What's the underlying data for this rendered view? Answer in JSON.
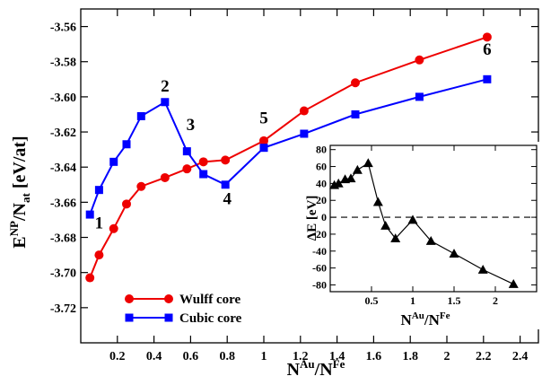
{
  "chart_data": [
    {
      "type": "line",
      "x_axis": {
        "label_main": "N",
        "label_sup1": "Au",
        "label_div": "/N",
        "label_sup2": "Fe",
        "range": [
          0,
          2.5
        ],
        "ticks": [
          0.2,
          0.4,
          0.6,
          0.8,
          1.0,
          1.2,
          1.4,
          1.6,
          1.8,
          2.0,
          2.2,
          2.4
        ],
        "tick_labels": [
          "0.2",
          "0.4",
          "0.6",
          "0.8",
          "1",
          "1.2",
          "1.4",
          "1.6",
          "1.8",
          "2",
          "2.2",
          "2.4"
        ]
      },
      "y_axis": {
        "label_main": "E",
        "label_sup": "NP",
        "label_div": "/N",
        "label_sub": "at",
        "label_unit": " [eV/at]",
        "range": [
          -3.74,
          -3.55
        ],
        "ticks": [
          -3.72,
          -3.7,
          -3.68,
          -3.66,
          -3.64,
          -3.62,
          -3.6,
          -3.58,
          -3.56
        ],
        "tick_labels": [
          "-3.72",
          "-3.70",
          "-3.68",
          "-3.66",
          "-3.64",
          "-3.62",
          "-3.60",
          "-3.58",
          "-3.56"
        ]
      },
      "series": [
        {
          "name": "Wulff core",
          "color": "#ee0000",
          "marker": "circle",
          "x": [
            0.05,
            0.1,
            0.18,
            0.25,
            0.33,
            0.46,
            0.58,
            0.67,
            0.79,
            1.0,
            1.22,
            1.5,
            1.85,
            2.22
          ],
          "y": [
            -3.703,
            -3.69,
            -3.675,
            -3.661,
            -3.651,
            -3.646,
            -3.641,
            -3.637,
            -3.636,
            -3.625,
            -3.608,
            -3.592,
            -3.579,
            -3.566
          ]
        },
        {
          "name": "Cubic core",
          "color": "#0000ff",
          "marker": "square",
          "x": [
            0.05,
            0.1,
            0.18,
            0.25,
            0.33,
            0.46,
            0.58,
            0.67,
            0.79,
            1.0,
            1.22,
            1.5,
            1.85,
            2.22
          ],
          "y": [
            -3.667,
            -3.653,
            -3.637,
            -3.627,
            -3.611,
            -3.603,
            -3.631,
            -3.644,
            -3.65,
            -3.629,
            -3.621,
            -3.61,
            -3.6,
            -3.59
          ]
        }
      ],
      "annotations": [
        {
          "text": "1",
          "x": 0.1,
          "y": -3.675
        },
        {
          "text": "2",
          "x": 0.46,
          "y": -3.597
        },
        {
          "text": "3",
          "x": 0.6,
          "y": -3.619
        },
        {
          "text": "4",
          "x": 0.8,
          "y": -3.661
        },
        {
          "text": "5",
          "x": 1.0,
          "y": -3.615
        },
        {
          "text": "6",
          "x": 2.22,
          "y": -3.576
        }
      ],
      "legend_position": "bottom-left",
      "grid": false
    },
    {
      "type": "line",
      "x_axis": {
        "label_main": "N",
        "label_sup1": "Au",
        "label_div": "/N",
        "label_sup2": "Fe",
        "range": [
          0,
          2.5
        ],
        "ticks": [
          0.5,
          1.0,
          1.5,
          2.0
        ],
        "tick_labels": [
          "0.5",
          "1",
          "1.5",
          "2"
        ]
      },
      "y_axis": {
        "label": "ΔE [eV]",
        "range": [
          -88,
          85
        ],
        "ticks": [
          80,
          60,
          40,
          20,
          0,
          -20,
          -40,
          -60,
          -80
        ],
        "tick_labels": [
          "80",
          "60",
          "40",
          "20",
          "0",
          "-20",
          "-40",
          "-60",
          "-80"
        ]
      },
      "series": [
        {
          "color": "#000000",
          "marker": "triangle",
          "x": [
            0.05,
            0.1,
            0.18,
            0.25,
            0.33,
            0.46,
            0.58,
            0.67,
            0.79,
            1.0,
            1.22,
            1.5,
            1.85,
            2.22
          ],
          "y": [
            38,
            40,
            45,
            46,
            56,
            64,
            18,
            -10,
            -25,
            -3,
            -28,
            -43,
            -62,
            -79
          ]
        }
      ],
      "zero_line": "dashed",
      "grid": false
    }
  ]
}
